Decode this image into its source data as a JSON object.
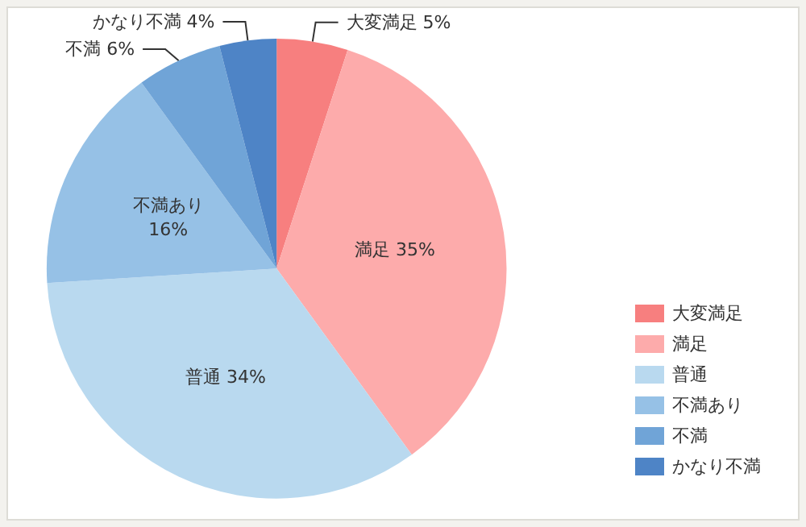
{
  "chart_data": {
    "type": "pie",
    "categories": [
      "大変満足",
      "満足",
      "普通",
      "不満あり",
      "不満",
      "かなり不満"
    ],
    "values": [
      5,
      35,
      34,
      16,
      6,
      4
    ],
    "value_labels": [
      "5%",
      "35%",
      "34%",
      "16%",
      "6%",
      "4%"
    ],
    "colors": [
      "#f77f7f",
      "#fdabab",
      "#b9d9ef",
      "#96c1e6",
      "#70a4d7",
      "#4e84c6"
    ],
    "legend": "bottom right"
  }
}
